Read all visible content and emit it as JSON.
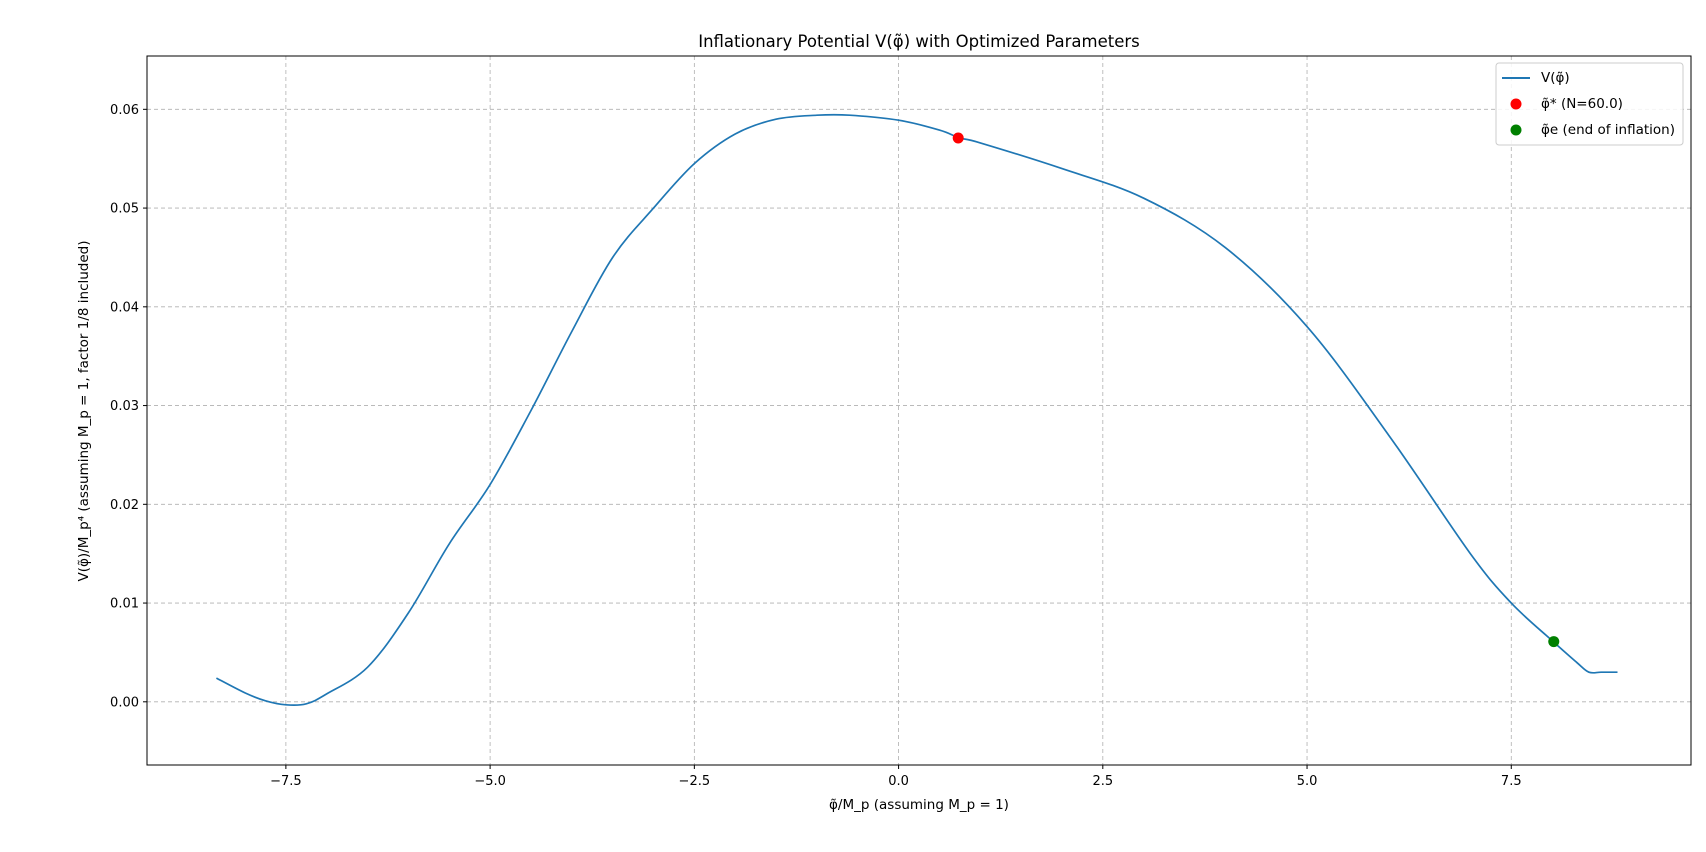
{
  "chart_data": {
    "type": "line",
    "title": "Inflationary Potential V(φ̃) with Optimized Parameters",
    "xlabel": "φ̃/M_p (assuming M_p = 1)",
    "ylabel": "V(φ̃)/M_p⁴ (assuming M_p = 1, factor 1/8 included)",
    "xlim": [
      -9.2,
      9.7
    ],
    "ylim": [
      -0.0064,
      0.0654
    ],
    "xticks": [
      -7.5,
      -5.0,
      -2.5,
      0.0,
      2.5,
      5.0,
      7.5
    ],
    "xtick_labels": [
      "−7.5",
      "−5.0",
      "−2.5",
      "0.0",
      "2.5",
      "5.0",
      "7.5"
    ],
    "yticks": [
      0.0,
      0.01,
      0.02,
      0.03,
      0.04,
      0.05,
      0.06
    ],
    "ytick_labels": [
      "0.00",
      "0.01",
      "0.02",
      "0.03",
      "0.04",
      "0.05",
      "0.06"
    ],
    "grid": true,
    "legend_position": "top-right",
    "series": [
      {
        "name": "V(φ̃)",
        "kind": "line",
        "color": "#1f77b4",
        "x": [
          -8.35,
          -8.0,
          -7.75,
          -7.5,
          -7.25,
          -7.0,
          -6.5,
          -6.0,
          -5.5,
          -5.0,
          -4.5,
          -4.0,
          -3.5,
          -3.0,
          -2.5,
          -2.0,
          -1.5,
          -1.0,
          -0.6,
          0.0,
          0.5,
          0.75,
          1.0,
          2.0,
          3.0,
          4.0,
          5.0,
          6.0,
          7.0,
          7.5,
          8.0,
          8.3,
          8.45,
          8.6,
          8.8
        ],
        "y": [
          0.0024,
          0.0009,
          0.0001,
          -0.0003,
          -0.0002,
          0.0008,
          0.0035,
          0.009,
          0.016,
          0.022,
          0.0295,
          0.0375,
          0.045,
          0.05,
          0.0545,
          0.0575,
          0.059,
          0.0594,
          0.0594,
          0.0589,
          0.0579,
          0.0571,
          0.0566,
          0.054,
          0.051,
          0.046,
          0.038,
          0.027,
          0.015,
          0.01,
          0.0062,
          0.004,
          0.003,
          0.003,
          0.003
        ]
      },
      {
        "name": "φ̃* (N=60.0)",
        "kind": "point",
        "color": "#ff0000",
        "x": [
          0.73
        ],
        "y": [
          0.0571
        ]
      },
      {
        "name": "φ̃e (end of inflation)",
        "kind": "point",
        "color": "#008000",
        "x": [
          8.02
        ],
        "y": [
          0.0061
        ]
      }
    ]
  }
}
